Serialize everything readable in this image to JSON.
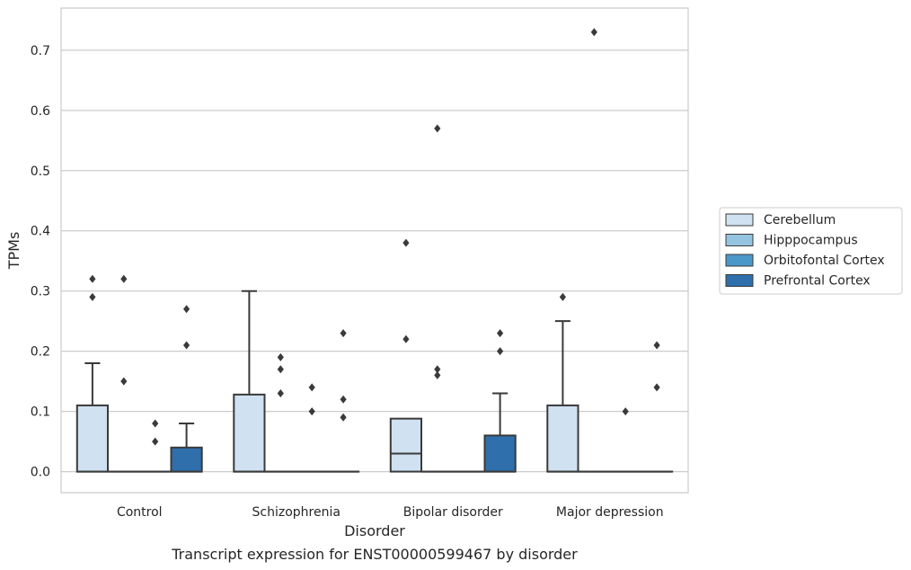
{
  "chart_data": {
    "type": "box",
    "title": "Transcript expression for ENST00000599467 by disorder",
    "xlabel": "Disorder",
    "ylabel": "TPMs",
    "ylim": [
      -0.035,
      0.77
    ],
    "yticks": [
      "0.0",
      "0.1",
      "0.2",
      "0.3",
      "0.4",
      "0.5",
      "0.6",
      "0.7"
    ],
    "grid": true,
    "legend_position": "right",
    "categories": [
      "Control",
      "Schizophrenia",
      "Bipolar disorder",
      "Major depression"
    ],
    "series": [
      {
        "name": "Cerebellum",
        "color": "#d0e1f2",
        "boxes": [
          {
            "q1": 0,
            "median": 0,
            "q3": 0.11,
            "whisker_low": 0,
            "whisker_high": 0.18,
            "outliers": [
              0.29,
              0.32
            ]
          },
          {
            "q1": 0,
            "median": 0,
            "q3": 0.128,
            "whisker_low": 0,
            "whisker_high": 0.3,
            "outliers": []
          },
          {
            "q1": 0,
            "median": 0.03,
            "q3": 0.088,
            "whisker_low": 0,
            "whisker_high": 0.088,
            "outliers": [
              0.22,
              0.38
            ]
          },
          {
            "q1": 0,
            "median": 0,
            "q3": 0.11,
            "whisker_low": 0,
            "whisker_high": 0.25,
            "outliers": [
              0.29
            ]
          }
        ]
      },
      {
        "name": "Hipppocampus",
        "color": "#94c4df",
        "boxes": [
          {
            "q1": 0,
            "median": 0,
            "q3": 0,
            "whisker_low": 0,
            "whisker_high": 0,
            "outliers": [
              0.15,
              0.32
            ]
          },
          {
            "q1": 0,
            "median": 0,
            "q3": 0,
            "whisker_low": 0,
            "whisker_high": 0,
            "outliers": [
              0.13,
              0.17,
              0.19
            ]
          },
          {
            "q1": 0,
            "median": 0,
            "q3": 0,
            "whisker_low": 0,
            "whisker_high": 0,
            "outliers": [
              0.16,
              0.17,
              0.57
            ]
          },
          {
            "q1": 0,
            "median": 0,
            "q3": 0,
            "whisker_low": 0,
            "whisker_high": 0,
            "outliers": [
              0.73
            ]
          }
        ]
      },
      {
        "name": "Orbitofontal Cortex",
        "color": "#4a98c9",
        "boxes": [
          {
            "q1": 0,
            "median": 0,
            "q3": 0,
            "whisker_low": 0,
            "whisker_high": 0,
            "outliers": [
              0.05,
              0.08
            ]
          },
          {
            "q1": 0,
            "median": 0,
            "q3": 0,
            "whisker_low": 0,
            "whisker_high": 0,
            "outliers": [
              0.1,
              0.14
            ]
          },
          {
            "q1": 0,
            "median": 0,
            "q3": 0,
            "whisker_low": 0,
            "whisker_high": 0,
            "outliers": []
          },
          {
            "q1": 0,
            "median": 0,
            "q3": 0,
            "whisker_low": 0,
            "whisker_high": 0,
            "outliers": [
              0.1
            ]
          }
        ]
      },
      {
        "name": "Prefrontal Cortex",
        "color": "#2e6fac",
        "boxes": [
          {
            "q1": 0,
            "median": 0,
            "q3": 0.04,
            "whisker_low": 0,
            "whisker_high": 0.08,
            "outliers": [
              0.21,
              0.27
            ]
          },
          {
            "q1": 0,
            "median": 0,
            "q3": 0,
            "whisker_low": 0,
            "whisker_high": 0,
            "outliers": [
              0.09,
              0.12,
              0.23
            ]
          },
          {
            "q1": 0,
            "median": 0,
            "q3": 0.06,
            "whisker_low": 0,
            "whisker_high": 0.13,
            "outliers": [
              0.2,
              0.23
            ]
          },
          {
            "q1": 0,
            "median": 0,
            "q3": 0,
            "whisker_low": 0,
            "whisker_high": 0,
            "outliers": [
              0.14,
              0.21
            ]
          }
        ]
      }
    ]
  }
}
